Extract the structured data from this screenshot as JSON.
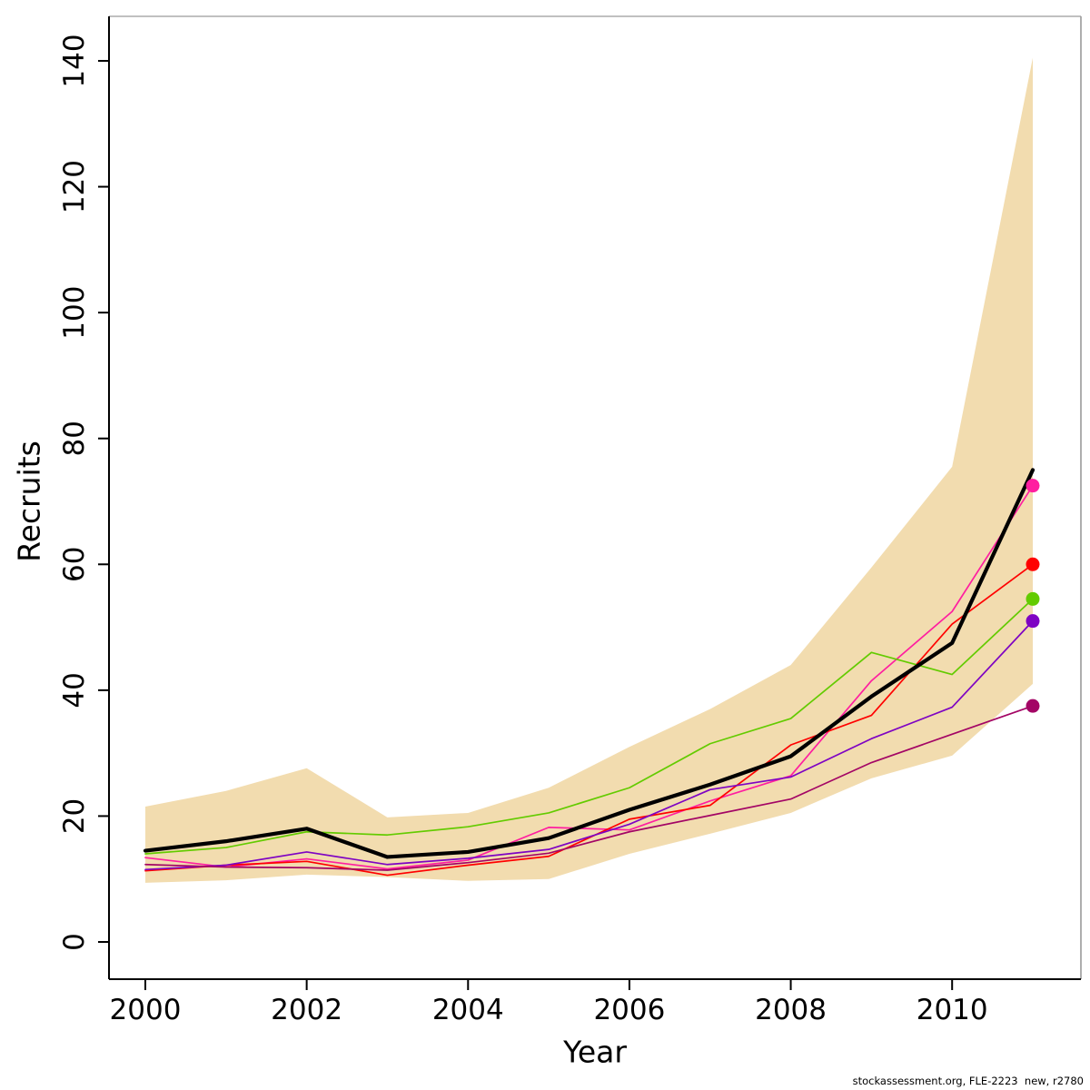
{
  "footer": {
    "text": "stockassessment.org, FLE-2223  new, r2780"
  },
  "chart_data": {
    "type": "line",
    "title": "",
    "xlabel": "Year",
    "ylabel": "Recruits",
    "xlim": [
      2000,
      2011
    ],
    "ylim": [
      0,
      140
    ],
    "grid": false,
    "legend": "none",
    "x": [
      2000,
      2001,
      2002,
      2003,
      2004,
      2005,
      2006,
      2007,
      2008,
      2009,
      2010,
      2011
    ],
    "xticks": [
      "2000",
      "2002",
      "2004",
      "2006",
      "2008",
      "2010"
    ],
    "xtick_values": [
      2000,
      2002,
      2004,
      2006,
      2008,
      2010
    ],
    "yticks": [
      "0",
      "20",
      "40",
      "60",
      "80",
      "100",
      "120",
      "140"
    ],
    "ytick_values": [
      0,
      20,
      40,
      60,
      80,
      100,
      120,
      140
    ],
    "band": {
      "name": "confidence-band",
      "color": "#F2DCAF",
      "upper": [
        21.5,
        24.0,
        27.6,
        19.8,
        20.5,
        24.5,
        31.0,
        37.0,
        44.0,
        59.5,
        75.5,
        140.5
      ],
      "lower": [
        9.4,
        9.8,
        10.7,
        10.3,
        9.7,
        10.0,
        14.0,
        17.2,
        20.5,
        26.0,
        29.6,
        41.0
      ]
    },
    "series": [
      {
        "name": "run-magenta",
        "color": "#FF1EA0",
        "width": 1.7,
        "dot": true,
        "values": [
          13.4,
          11.9,
          13.2,
          11.6,
          13.0,
          18.2,
          17.8,
          22.4,
          26.4,
          41.5,
          52.5,
          72.5
        ]
      },
      {
        "name": "run-red",
        "color": "#FF0000",
        "width": 1.7,
        "dot": true,
        "values": [
          11.3,
          12.2,
          12.8,
          10.6,
          12.2,
          13.6,
          19.5,
          21.7,
          31.3,
          36.0,
          50.5,
          60.0
        ]
      },
      {
        "name": "run-green",
        "color": "#63CB00",
        "width": 1.7,
        "dot": true,
        "values": [
          14.0,
          15.0,
          17.5,
          17.0,
          18.3,
          20.5,
          24.5,
          31.5,
          35.5,
          46.0,
          42.5,
          54.5
        ]
      },
      {
        "name": "run-purple",
        "color": "#7E03C3",
        "width": 1.7,
        "dot": true,
        "values": [
          11.5,
          12.2,
          14.3,
          12.3,
          13.3,
          14.7,
          18.7,
          24.2,
          26.2,
          32.3,
          37.3,
          51.0
        ]
      },
      {
        "name": "run-darkmagenta",
        "color": "#A30565",
        "width": 1.7,
        "dot": true,
        "values": [
          12.3,
          11.9,
          11.8,
          11.4,
          12.6,
          14.1,
          17.5,
          20.1,
          22.7,
          28.5,
          33.0,
          37.5
        ]
      },
      {
        "name": "base-run",
        "color": "#000000",
        "width": 4.2,
        "dot": false,
        "values": [
          14.5,
          16.0,
          18.0,
          13.5,
          14.3,
          16.5,
          21.0,
          25.0,
          29.5,
          39.0,
          47.5,
          75.0
        ]
      }
    ]
  }
}
